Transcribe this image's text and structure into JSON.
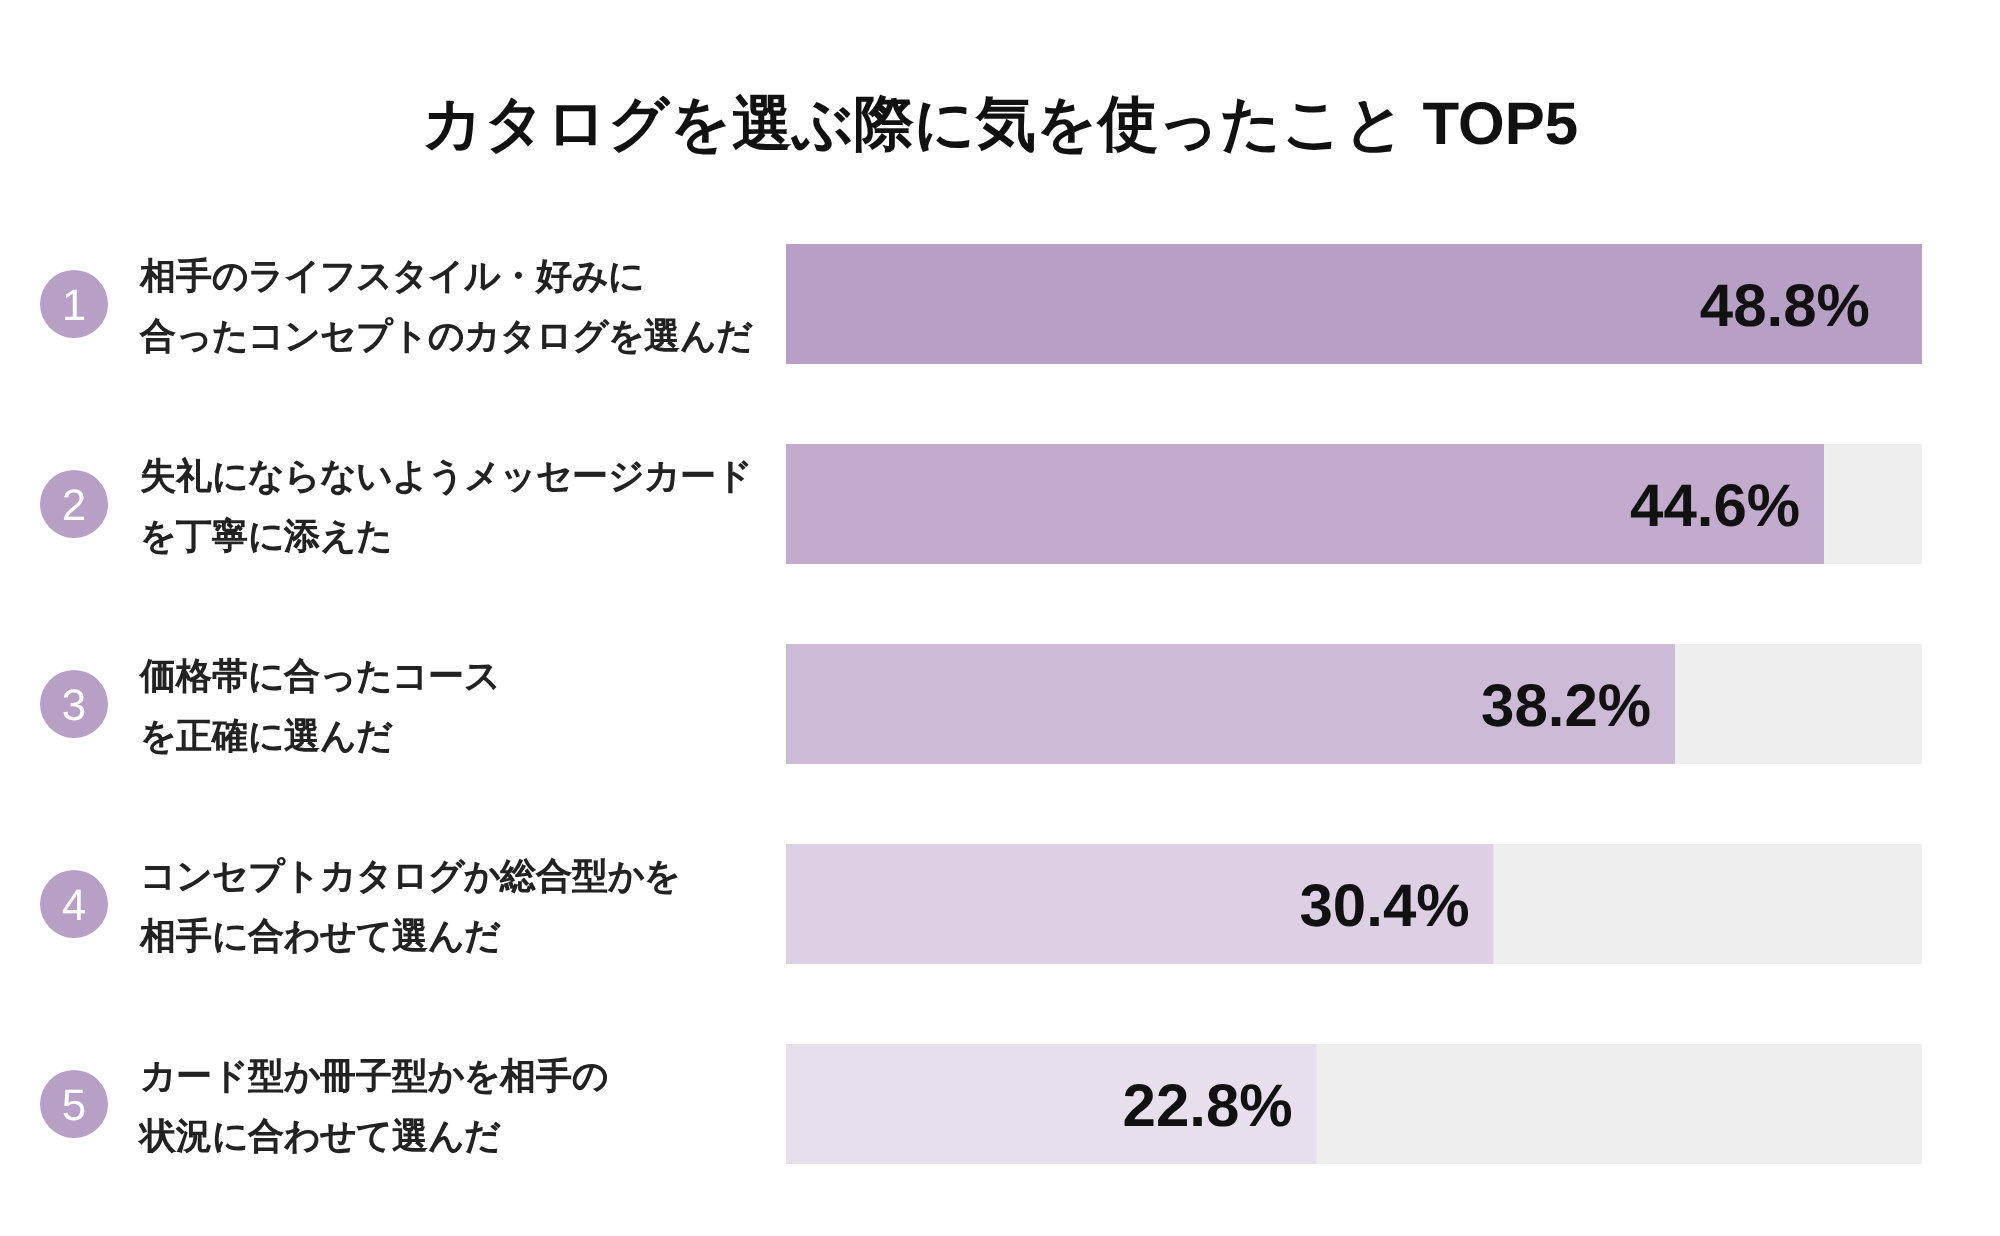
{
  "chart_data": {
    "type": "bar",
    "orientation": "horizontal",
    "stacked": true,
    "title": "カタログを選ぶ際に気を使ったこと TOP5",
    "categories": [
      "相手のライフスタイル・好みに合ったコンセプトのカタログを選んだ",
      "失礼にならないようメッセージカードを丁寧に添えた",
      "価格帯に合ったコースを正確に選んだ",
      "コンセプトカタログか総合型かを相手に合わせて選んだ",
      "カード型か冊子型かを相手の状況に合わせて選んだ"
    ],
    "series": [
      {
        "values": [
          48.8,
          44.6,
          38.2,
          30.4,
          22.8
        ],
        "value_labels": [
          "48.8%",
          "44.6%",
          "38.2%",
          "30.4%",
          "22.8%"
        ],
        "colors": [
          "#b89fc5",
          "#c2abcd",
          "#cdbad6",
          "#ddd0e4",
          "#e8dfec"
        ]
      },
      {
        "values": [
          0,
          4.2,
          10.6,
          18.4,
          26.0
        ],
        "color": "#eeeeee"
      }
    ],
    "annotations": [
      "1",
      "2",
      "3",
      "4",
      "5"
    ],
    "xlim": [
      0,
      48.8
    ]
  }
}
